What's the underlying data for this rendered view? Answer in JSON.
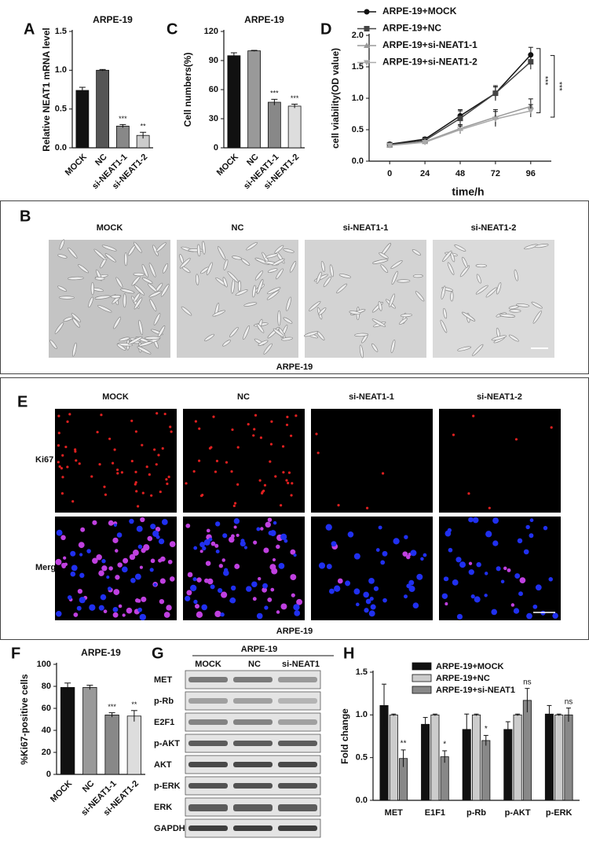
{
  "chart_data": [
    {
      "type": "bar",
      "panel": "A",
      "title": "ARPE-19",
      "ylabel": "Relative NEAT1 mRNA level",
      "categories": [
        "MOCK",
        "NC",
        "si-NEAT1-1",
        "si-NEAT1-2"
      ],
      "values": [
        0.74,
        1.0,
        0.28,
        0.16
      ],
      "errors": [
        0.04,
        0.01,
        0.02,
        0.04
      ],
      "colors": [
        "#111111",
        "#555555",
        "#888888",
        "#cccccc"
      ],
      "ylim": [
        0,
        1.5
      ],
      "yticks": [
        {
          "value": 0,
          "label": "0.0"
        },
        0.5,
        {
          "value": 1,
          "label": "1.0"
        },
        1.5
      ],
      "value_annotations": [
        null,
        null,
        "***",
        "**"
      ]
    },
    {
      "type": "bar",
      "panel": "C",
      "title": "ARPE-19",
      "ylabel": "Cell numbers(%)",
      "categories": [
        "MOCK",
        "NC",
        "si-NEAT1-1",
        "si-NEAT1-2"
      ],
      "values": [
        95,
        100,
        47,
        43
      ],
      "errors": [
        3,
        0.5,
        3,
        2
      ],
      "colors": [
        "#111111",
        "#999999",
        "#888888",
        "#dddddd"
      ],
      "ylim": [
        0,
        120
      ],
      "yticks": [
        0,
        30,
        60,
        90,
        120
      ],
      "value_annotations": [
        null,
        null,
        "***",
        "***"
      ]
    },
    {
      "type": "line",
      "panel": "D",
      "xlabel": "time/h",
      "ylabel": "cell viability(OD value)",
      "x": [
        0,
        24,
        48,
        72,
        96
      ],
      "xlim": [
        -14,
        110
      ],
      "xticks": [
        0,
        24,
        48,
        72,
        96
      ],
      "ylim": [
        0,
        2
      ],
      "yticks": [
        {
          "value": 0,
          "label": "0.0"
        },
        0.5,
        {
          "value": 1,
          "label": "1.0"
        },
        1.5,
        {
          "value": 2,
          "label": "2.0"
        }
      ],
      "series": [
        {
          "name": "ARPE-19+MOCK",
          "color": "#111111",
          "marker": "circle",
          "values": [
            0.27,
            0.35,
            0.72,
            1.08,
            1.69
          ],
          "errors": [
            0.02,
            0.03,
            0.1,
            0.12,
            0.12
          ]
        },
        {
          "name": "ARPE-19+NC",
          "color": "#444444",
          "marker": "square",
          "values": [
            0.26,
            0.33,
            0.68,
            1.08,
            1.58
          ],
          "errors": [
            0.02,
            0.03,
            0.12,
            0.1,
            0.12
          ]
        },
        {
          "name": "ARPE-19+si-NEAT1-1",
          "color": "#999999",
          "marker": "triangle-up",
          "values": [
            0.25,
            0.31,
            0.52,
            0.7,
            0.87
          ],
          "errors": [
            0.02,
            0.03,
            0.06,
            0.12,
            0.12
          ]
        },
        {
          "name": "ARPE-19+si-NEAT1-2",
          "color": "#aaaaaa",
          "marker": "triangle-down",
          "values": [
            0.25,
            0.3,
            0.5,
            0.67,
            0.8
          ],
          "errors": [
            0.02,
            0.03,
            0.06,
            0.12,
            0.1
          ]
        }
      ],
      "annotations": [
        "***",
        "***"
      ]
    },
    {
      "type": "bar",
      "panel": "F",
      "title": "ARPE-19",
      "ylabel": "%Ki67-positive cells",
      "categories": [
        "MOCK",
        "NC",
        "si-NEAT1-1",
        "si-NEAT1-2"
      ],
      "values": [
        79,
        79,
        54,
        53
      ],
      "errors": [
        4,
        2,
        2,
        5
      ],
      "colors": [
        "#111111",
        "#999999",
        "#888888",
        "#dddddd"
      ],
      "ylim": [
        0,
        100
      ],
      "yticks": [
        0,
        20,
        40,
        60,
        80,
        100
      ],
      "value_annotations": [
        null,
        null,
        "***",
        "**"
      ]
    },
    {
      "type": "grouped-bar",
      "panel": "H",
      "ylabel": "Fold change",
      "categories": [
        "MET",
        "E1F1",
        "p-Rb",
        "p-AKT",
        "p-ERK"
      ],
      "ylim": [
        0,
        1.5
      ],
      "yticks": [
        {
          "value": 0,
          "label": "0.0"
        },
        0.5,
        {
          "value": 1,
          "label": "1.0"
        },
        1.5
      ],
      "series": [
        {
          "name": "ARPE-19+MOCK",
          "color": "#111111",
          "values": [
            1.11,
            0.89,
            0.83,
            0.83,
            1.01
          ],
          "errors": [
            0.25,
            0.08,
            0.18,
            0.09,
            0.1
          ]
        },
        {
          "name": "ARPE-19+NC",
          "color": "#cccccc",
          "values": [
            1,
            1,
            1,
            1,
            1
          ],
          "errors": [
            0.01,
            0.01,
            0.01,
            0.01,
            0.01
          ]
        },
        {
          "name": "ARPE-19+si-NEAT1",
          "color": "#888888",
          "values": [
            0.49,
            0.51,
            0.7,
            1.17,
            1.0
          ],
          "errors": [
            0.1,
            0.07,
            0.06,
            0.14,
            0.08
          ]
        }
      ],
      "value_annotations": [
        "**",
        "*",
        "*",
        "ns",
        "ns"
      ]
    }
  ],
  "panel_b": {
    "panel": "B",
    "titles": [
      "MOCK",
      "NC",
      "si-NEAT1-1",
      "si-NEAT1-2"
    ],
    "caption": "ARPE-19"
  },
  "panel_e": {
    "panel": "E",
    "titles": [
      "MOCK",
      "NC",
      "si-NEAT1-1",
      "si-NEAT1-2"
    ],
    "rows": [
      "Ki67",
      "Merge"
    ],
    "caption": "ARPE-19"
  },
  "panel_g": {
    "panel": "G",
    "header": "ARPE-19",
    "columns": [
      "MOCK",
      "NC",
      "si-NEAT1"
    ],
    "rows": [
      "MET",
      "p-Rb",
      "E2F1",
      "p-AKT",
      "AKT",
      "p-ERK",
      "ERK",
      "GAPDH"
    ]
  }
}
